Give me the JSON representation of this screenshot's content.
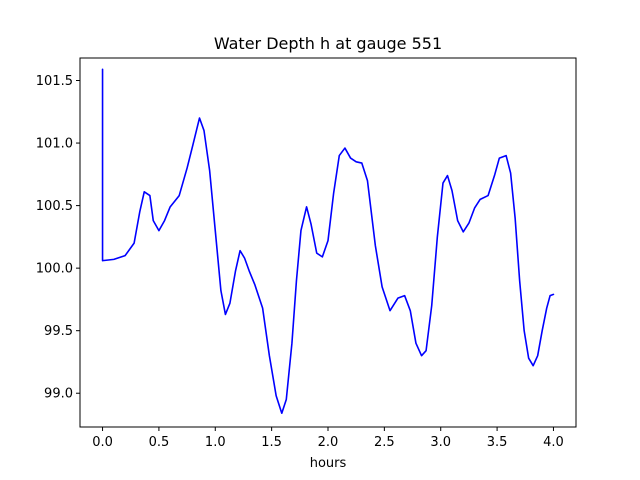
{
  "chart_data": {
    "type": "line",
    "title": "Water Depth h at gauge 551",
    "xlabel": "hours",
    "ylabel": "",
    "xlim": [
      -0.2,
      4.2
    ],
    "ylim": [
      98.73,
      101.68
    ],
    "xticks": [
      0.0,
      0.5,
      1.0,
      1.5,
      2.0,
      2.5,
      3.0,
      3.5,
      4.0
    ],
    "xtick_labels": [
      "0.0",
      "0.5",
      "1.0",
      "1.5",
      "2.0",
      "2.5",
      "3.0",
      "3.5",
      "4.0"
    ],
    "yticks": [
      99.0,
      99.5,
      100.0,
      100.5,
      101.0,
      101.5
    ],
    "ytick_labels": [
      "99.0",
      "99.5",
      "100.0",
      "100.5",
      "101.0",
      "101.5"
    ],
    "grid": false,
    "series": [
      {
        "color": "#0000ff",
        "x": [
          0.0,
          0.0,
          0.002,
          0.1,
          0.2,
          0.28,
          0.33,
          0.37,
          0.42,
          0.45,
          0.5,
          0.55,
          0.6,
          0.68,
          0.75,
          0.8,
          0.86,
          0.9,
          0.95,
          1.0,
          1.05,
          1.09,
          1.13,
          1.18,
          1.22,
          1.26,
          1.3,
          1.35,
          1.42,
          1.48,
          1.54,
          1.59,
          1.63,
          1.68,
          1.72,
          1.76,
          1.81,
          1.85,
          1.9,
          1.95,
          2.0,
          2.05,
          2.1,
          2.15,
          2.2,
          2.25,
          2.3,
          2.35,
          2.42,
          2.48,
          2.55,
          2.62,
          2.68,
          2.73,
          2.78,
          2.83,
          2.87,
          2.92,
          2.97,
          3.02,
          3.06,
          3.1,
          3.15,
          3.2,
          3.25,
          3.3,
          3.35,
          3.42,
          3.48,
          3.52,
          3.58,
          3.62,
          3.66,
          3.7,
          3.74,
          3.78,
          3.82,
          3.86,
          3.9,
          3.94,
          3.97,
          4.0
        ],
        "y": [
          101.59,
          100.06,
          100.06,
          100.07,
          100.1,
          100.2,
          100.45,
          100.61,
          100.58,
          100.38,
          100.3,
          100.38,
          100.49,
          100.58,
          100.8,
          100.98,
          101.2,
          101.1,
          100.78,
          100.3,
          99.82,
          99.63,
          99.72,
          99.98,
          100.14,
          100.08,
          99.98,
          99.87,
          99.68,
          99.3,
          98.98,
          98.84,
          98.95,
          99.4,
          99.9,
          100.3,
          100.49,
          100.35,
          100.12,
          100.09,
          100.22,
          100.6,
          100.9,
          100.96,
          100.88,
          100.85,
          100.84,
          100.7,
          100.18,
          99.85,
          99.66,
          99.76,
          99.78,
          99.66,
          99.4,
          99.3,
          99.34,
          99.7,
          100.25,
          100.68,
          100.74,
          100.62,
          100.38,
          100.29,
          100.36,
          100.48,
          100.55,
          100.58,
          100.75,
          100.88,
          100.9,
          100.76,
          100.4,
          99.9,
          99.5,
          99.28,
          99.22,
          99.3,
          99.5,
          99.68,
          99.78,
          99.79
        ]
      }
    ]
  }
}
